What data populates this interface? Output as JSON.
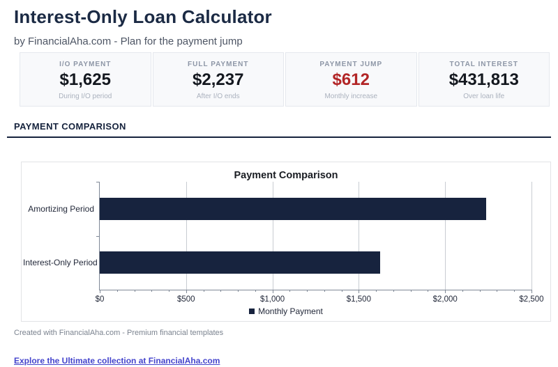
{
  "page": {
    "title": "Interest-Only Loan Calculator",
    "subtitle": "by FinancialAha.com - Plan for the payment jump"
  },
  "stats": [
    {
      "label": "I/O PAYMENT",
      "value": "$1,625",
      "sublabel": "During I/O period"
    },
    {
      "label": "FULL PAYMENT",
      "value": "$2,237",
      "sublabel": "After I/O ends"
    },
    {
      "label": "PAYMENT JUMP",
      "value": "$612",
      "sublabel": "Monthly increase"
    },
    {
      "label": "TOTAL INTEREST",
      "value": "$431,813",
      "sublabel": "Over loan life"
    }
  ],
  "section": {
    "header": "PAYMENT COMPARISON"
  },
  "chart_data": {
    "type": "bar",
    "orientation": "horizontal",
    "title": "Payment Comparison",
    "categories": [
      "Amortizing Period",
      "Interest-Only Period"
    ],
    "series": [
      {
        "name": "Monthly Payment",
        "values": [
          2237,
          1625
        ]
      }
    ],
    "xlabel": "",
    "ylabel": "",
    "xlim": [
      0,
      2500
    ],
    "xticks": [
      0,
      500,
      1000,
      1500,
      2000,
      2500
    ],
    "xtick_labels": [
      "$0",
      "$500",
      "$1,000",
      "$1,500",
      "$2,000",
      "$2,500"
    ],
    "minor_tick_step": 100,
    "grid": true,
    "legend_position": "bottom",
    "bar_color": "#17233e"
  },
  "footer": {
    "credit": "Created with FinancialAha.com - Premium financial templates",
    "link_label": "Explore the Ultimate collection at FinancialAha.com"
  },
  "colors": {
    "heading_navy": "#1b2a44",
    "section_navy": "#15223c",
    "stat_value_dark": "#14181f",
    "payment_jump_red": "#b22526",
    "bar_navy": "#17233e",
    "link_blue": "#4444cc",
    "card_background": "#f8f9fb",
    "card_border": "#e5e8ee",
    "gridline_gray": "#c8ccd2"
  }
}
